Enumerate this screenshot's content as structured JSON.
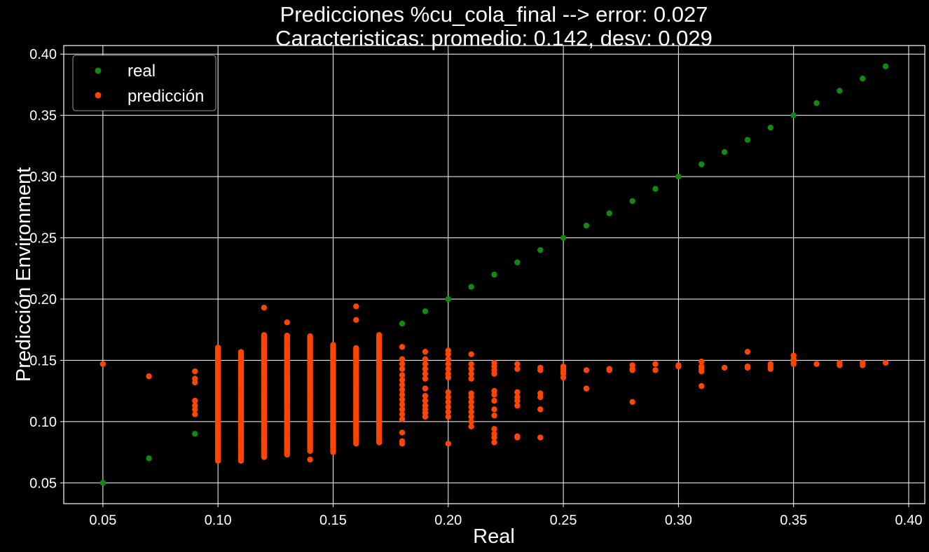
{
  "chart_data": {
    "type": "scatter",
    "title_line1": "Predicciones %cu_cola_final --> error: 0.027",
    "title_line2": "Caracteristicas: promedio: 0.142, desv: 0.029",
    "xlabel": "Real",
    "ylabel": "Predicción Environment",
    "xlim": [
      0.033,
      0.407
    ],
    "ylim": [
      0.033,
      0.407
    ],
    "x_ticks": [
      "0.05",
      "0.10",
      "0.15",
      "0.20",
      "0.25",
      "0.30",
      "0.35",
      "0.40"
    ],
    "y_ticks": [
      "0.05",
      "0.10",
      "0.15",
      "0.20",
      "0.25",
      "0.30",
      "0.35",
      "0.40"
    ],
    "grid": true,
    "legend_position": "top-left",
    "colors": {
      "background": "#000000",
      "real": "#118a11",
      "pred": "#ff4500",
      "grid": "#ffffff",
      "text": "#ffffff"
    },
    "series": [
      {
        "name": "real",
        "points": [
          [
            0.05,
            0.05
          ],
          [
            0.07,
            0.07
          ],
          [
            0.09,
            0.09
          ],
          [
            0.1,
            0.1
          ],
          [
            0.11,
            0.11
          ],
          [
            0.12,
            0.12
          ],
          [
            0.13,
            0.13
          ],
          [
            0.14,
            0.14
          ],
          [
            0.15,
            0.15
          ],
          [
            0.16,
            0.16
          ],
          [
            0.17,
            0.17
          ],
          [
            0.18,
            0.18
          ],
          [
            0.19,
            0.19
          ],
          [
            0.2,
            0.2
          ],
          [
            0.21,
            0.21
          ],
          [
            0.22,
            0.22
          ],
          [
            0.23,
            0.23
          ],
          [
            0.24,
            0.24
          ],
          [
            0.25,
            0.25
          ],
          [
            0.26,
            0.26
          ],
          [
            0.27,
            0.27
          ],
          [
            0.28,
            0.28
          ],
          [
            0.29,
            0.29
          ],
          [
            0.3,
            0.3
          ],
          [
            0.31,
            0.31
          ],
          [
            0.32,
            0.32
          ],
          [
            0.33,
            0.33
          ],
          [
            0.34,
            0.34
          ],
          [
            0.35,
            0.35
          ],
          [
            0.36,
            0.36
          ],
          [
            0.37,
            0.37
          ],
          [
            0.38,
            0.38
          ],
          [
            0.39,
            0.39
          ]
        ]
      },
      {
        "name": "predicción",
        "columns": [
          {
            "x": 0.1,
            "from": 0.068,
            "to": 0.161
          },
          {
            "x": 0.11,
            "from": 0.068,
            "to": 0.157
          },
          {
            "x": 0.12,
            "from": 0.071,
            "to": 0.171
          },
          {
            "x": 0.13,
            "from": 0.073,
            "to": 0.171
          },
          {
            "x": 0.14,
            "from": 0.076,
            "to": 0.17
          },
          {
            "x": 0.15,
            "from": 0.075,
            "to": 0.163
          },
          {
            "x": 0.16,
            "from": 0.082,
            "to": 0.161
          },
          {
            "x": 0.17,
            "from": 0.083,
            "to": 0.171
          }
        ],
        "points": [
          [
            0.05,
            0.147
          ],
          [
            0.07,
            0.137
          ],
          [
            0.09,
            0.141
          ],
          [
            0.09,
            0.135
          ],
          [
            0.09,
            0.132
          ],
          [
            0.09,
            0.117
          ],
          [
            0.09,
            0.113
          ],
          [
            0.09,
            0.11
          ],
          [
            0.09,
            0.106
          ],
          [
            0.1,
            0.089
          ],
          [
            0.12,
            0.193
          ],
          [
            0.13,
            0.181
          ],
          [
            0.14,
            0.069
          ],
          [
            0.16,
            0.194
          ],
          [
            0.16,
            0.183
          ],
          [
            0.17,
            0.164
          ],
          [
            0.18,
            0.161
          ],
          [
            0.18,
            0.151
          ],
          [
            0.18,
            0.147
          ],
          [
            0.18,
            0.143
          ],
          [
            0.18,
            0.138
          ],
          [
            0.18,
            0.134
          ],
          [
            0.18,
            0.13
          ],
          [
            0.18,
            0.126
          ],
          [
            0.18,
            0.122
          ],
          [
            0.18,
            0.118
          ],
          [
            0.18,
            0.114
          ],
          [
            0.18,
            0.11
          ],
          [
            0.18,
            0.106
          ],
          [
            0.18,
            0.102
          ],
          [
            0.18,
            0.091
          ],
          [
            0.18,
            0.084
          ],
          [
            0.18,
            0.082
          ],
          [
            0.19,
            0.157
          ],
          [
            0.19,
            0.151
          ],
          [
            0.19,
            0.147
          ],
          [
            0.19,
            0.143
          ],
          [
            0.19,
            0.139
          ],
          [
            0.19,
            0.135
          ],
          [
            0.19,
            0.127
          ],
          [
            0.19,
            0.121
          ],
          [
            0.19,
            0.117
          ],
          [
            0.19,
            0.113
          ],
          [
            0.19,
            0.11
          ],
          [
            0.19,
            0.107
          ],
          [
            0.19,
            0.104
          ],
          [
            0.2,
            0.158
          ],
          [
            0.2,
            0.155
          ],
          [
            0.2,
            0.151
          ],
          [
            0.2,
            0.147
          ],
          [
            0.2,
            0.143
          ],
          [
            0.2,
            0.139
          ],
          [
            0.2,
            0.136
          ],
          [
            0.2,
            0.124
          ],
          [
            0.2,
            0.12
          ],
          [
            0.2,
            0.116
          ],
          [
            0.2,
            0.112
          ],
          [
            0.2,
            0.108
          ],
          [
            0.2,
            0.104
          ],
          [
            0.2,
            0.082
          ],
          [
            0.21,
            0.155
          ],
          [
            0.21,
            0.147
          ],
          [
            0.21,
            0.143
          ],
          [
            0.21,
            0.139
          ],
          [
            0.21,
            0.135
          ],
          [
            0.21,
            0.123
          ],
          [
            0.21,
            0.12
          ],
          [
            0.21,
            0.116
          ],
          [
            0.21,
            0.112
          ],
          [
            0.21,
            0.108
          ],
          [
            0.21,
            0.104
          ],
          [
            0.21,
            0.1
          ],
          [
            0.21,
            0.096
          ],
          [
            0.22,
            0.148
          ],
          [
            0.22,
            0.145
          ],
          [
            0.22,
            0.142
          ],
          [
            0.22,
            0.139
          ],
          [
            0.22,
            0.125
          ],
          [
            0.22,
            0.122
          ],
          [
            0.22,
            0.117
          ],
          [
            0.22,
            0.11
          ],
          [
            0.22,
            0.105
          ],
          [
            0.22,
            0.094
          ],
          [
            0.22,
            0.09
          ],
          [
            0.22,
            0.087
          ],
          [
            0.22,
            0.083
          ],
          [
            0.23,
            0.147
          ],
          [
            0.23,
            0.143
          ],
          [
            0.23,
            0.124
          ],
          [
            0.23,
            0.12
          ],
          [
            0.23,
            0.117
          ],
          [
            0.23,
            0.113
          ],
          [
            0.23,
            0.088
          ],
          [
            0.23,
            0.087
          ],
          [
            0.24,
            0.144
          ],
          [
            0.24,
            0.142
          ],
          [
            0.24,
            0.123
          ],
          [
            0.24,
            0.12
          ],
          [
            0.24,
            0.11
          ],
          [
            0.24,
            0.087
          ],
          [
            0.25,
            0.145
          ],
          [
            0.25,
            0.143
          ],
          [
            0.25,
            0.141
          ],
          [
            0.25,
            0.139
          ],
          [
            0.25,
            0.136
          ],
          [
            0.26,
            0.142
          ],
          [
            0.26,
            0.127
          ],
          [
            0.27,
            0.143
          ],
          [
            0.27,
            0.142
          ],
          [
            0.28,
            0.146
          ],
          [
            0.28,
            0.143
          ],
          [
            0.28,
            0.142
          ],
          [
            0.28,
            0.116
          ],
          [
            0.29,
            0.147
          ],
          [
            0.29,
            0.142
          ],
          [
            0.3,
            0.146
          ],
          [
            0.3,
            0.145
          ],
          [
            0.31,
            0.149
          ],
          [
            0.31,
            0.145
          ],
          [
            0.31,
            0.143
          ],
          [
            0.31,
            0.141
          ],
          [
            0.31,
            0.129
          ],
          [
            0.32,
            0.144
          ],
          [
            0.33,
            0.157
          ],
          [
            0.33,
            0.145
          ],
          [
            0.33,
            0.144
          ],
          [
            0.34,
            0.147
          ],
          [
            0.34,
            0.145
          ],
          [
            0.34,
            0.143
          ],
          [
            0.35,
            0.154
          ],
          [
            0.35,
            0.151
          ],
          [
            0.35,
            0.149
          ],
          [
            0.35,
            0.147
          ],
          [
            0.36,
            0.147
          ],
          [
            0.37,
            0.148
          ],
          [
            0.37,
            0.146
          ],
          [
            0.38,
            0.148
          ],
          [
            0.38,
            0.146
          ],
          [
            0.39,
            0.148
          ]
        ]
      }
    ]
  }
}
